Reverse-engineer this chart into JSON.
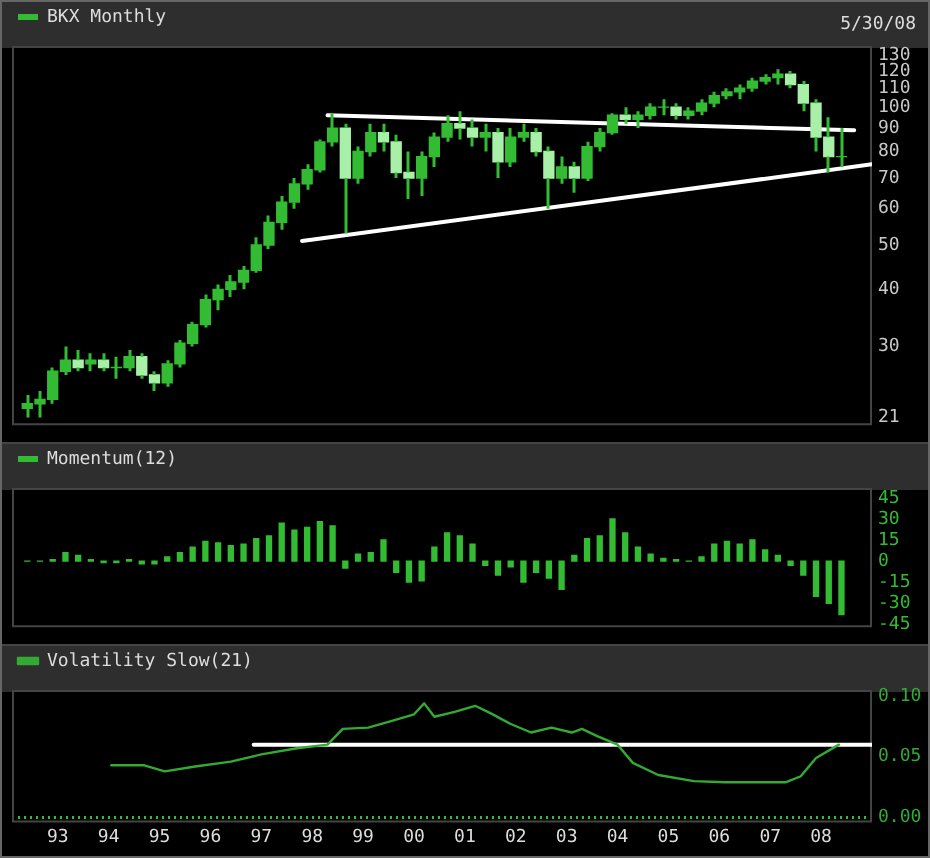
{
  "chart_data": [
    {
      "type": "candlestick",
      "legend": "top left",
      "log": true,
      "tick_labels": "y",
      "annotations": [
        "5/30/08"
      ],
      "xlim": [
        1992.1,
        2009.0
      ],
      "ylim": [
        20.2,
        136
      ],
      "yticks": [
        21,
        30,
        40,
        50,
        60,
        70,
        80,
        90,
        100,
        110,
        120,
        130
      ],
      "series": [
        {
          "name": "BKX Monthly",
          "color": "#33bb33",
          "colors": [
            "#33bb33",
            "#33bb33",
            "#33bb33",
            "#33bb33",
            "#a8f0a8",
            "#33bb33",
            "#a8f0a8",
            "#33bb33",
            "#33bb33",
            "#a8f0a8",
            "#a8f0a8",
            "#33bb33",
            "#33bb33",
            "#33bb33",
            "#33bb33",
            "#33bb33",
            "#33bb33",
            "#33bb33",
            "#33bb33",
            "#33bb33",
            "#33bb33",
            "#33bb33",
            "#33bb33",
            "#33bb33",
            "#33bb33",
            "#a8f0a8",
            "#33bb33",
            "#33bb33",
            "#a8f0a8",
            "#a8f0a8",
            "#a8f0a8",
            "#33bb33",
            "#33bb33",
            "#33bb33",
            "#a8f0a8",
            "#a8f0a8",
            "#33bb33",
            "#a8f0a8",
            "#33bb33",
            "#33bb33",
            "#a8f0a8",
            "#a8f0a8",
            "#33bb33",
            "#a8f0a8",
            "#33bb33",
            "#33bb33",
            "#33bb33",
            "#a8f0a8",
            "#33bb33",
            "#33bb33",
            "#33bb33",
            "#a8f0a8",
            "#33bb33",
            "#33bb33",
            "#33bb33",
            "#33bb33",
            "#33bb33",
            "#33bb33",
            "#33bb33",
            "#33bb33",
            "#a8f0a8",
            "#a8f0a8",
            "#a8f0a8",
            "#a8f0a8",
            "#33bb33"
          ],
          "x": [
            1992.4,
            1992.65,
            1992.9,
            1993.15,
            1993.4,
            1993.65,
            1993.9,
            1994.15,
            1994.4,
            1994.65,
            1994.9,
            1995.15,
            1995.4,
            1995.65,
            1995.9,
            1996.15,
            1996.4,
            1996.65,
            1996.9,
            1997.15,
            1997.4,
            1997.65,
            1997.9,
            1998.15,
            1998.4,
            1998.65,
            1998.9,
            1999.15,
            1999.4,
            1999.65,
            1999.9,
            2000.15,
            2000.4,
            2000.65,
            2000.9,
            2001.15,
            2001.4,
            2001.65,
            2001.9,
            2002.15,
            2002.4,
            2002.65,
            2002.9,
            2003.15,
            2003.4,
            2003.65,
            2003.9,
            2004.15,
            2004.4,
            2004.65,
            2004.9,
            2005.15,
            2005.4,
            2005.65,
            2005.9,
            2006.15,
            2006.4,
            2006.65,
            2006.9,
            2007.15,
            2007.4,
            2007.65,
            2007.9,
            2008.15,
            2008.4
          ],
          "ohlc": [
            [
              22,
              23.5,
              21,
              22.5
            ],
            [
              22.5,
              24,
              21,
              23
            ],
            [
              23,
              27,
              22.5,
              26.5
            ],
            [
              26.5,
              30,
              26,
              28
            ],
            [
              28,
              29.5,
              26.5,
              27
            ],
            [
              27.5,
              29,
              26.5,
              28
            ],
            [
              28,
              29,
              26.5,
              27
            ],
            [
              27,
              28.5,
              25.5,
              27
            ],
            [
              27,
              29.5,
              26.5,
              28.5
            ],
            [
              28.5,
              29,
              25.5,
              26
            ],
            [
              26,
              26.5,
              24,
              25
            ],
            [
              25,
              28,
              24.5,
              27.5
            ],
            [
              27.5,
              31,
              27,
              30.5
            ],
            [
              30.5,
              34,
              30,
              33.5
            ],
            [
              33.5,
              39,
              33,
              38
            ],
            [
              38,
              41,
              36,
              40
            ],
            [
              40,
              43,
              38.5,
              41.5
            ],
            [
              41.5,
              45,
              40,
              44
            ],
            [
              44,
              52,
              43.5,
              50
            ],
            [
              50,
              58,
              49,
              56
            ],
            [
              56,
              64,
              54,
              62
            ],
            [
              62,
              70,
              60,
              68
            ],
            [
              68,
              75,
              66,
              73
            ],
            [
              73,
              85,
              72,
              84
            ],
            [
              84,
              97,
              82,
              90
            ],
            [
              90,
              92,
              53,
              70
            ],
            [
              70,
              82,
              68,
              80
            ],
            [
              80,
              92,
              78,
              88
            ],
            [
              88,
              92,
              80,
              84
            ],
            [
              84,
              87,
              70,
              72
            ],
            [
              72,
              80,
              63,
              70
            ],
            [
              70,
              80,
              64,
              78
            ],
            [
              78,
              88,
              74,
              86
            ],
            [
              86,
              96,
              84,
              92
            ],
            [
              92,
              98,
              85,
              90
            ],
            [
              90,
              94,
              82,
              86
            ],
            [
              86,
              92,
              80,
              88
            ],
            [
              88,
              90,
              70,
              76
            ],
            [
              76,
              90,
              74,
              86
            ],
            [
              86,
              92,
              84,
              88
            ],
            [
              88,
              90,
              78,
              80
            ],
            [
              80,
              82,
              60,
              70
            ],
            [
              70,
              78,
              68,
              74
            ],
            [
              74,
              76,
              65,
              70
            ],
            [
              70,
              84,
              69,
              82
            ],
            [
              82,
              90,
              80,
              88
            ],
            [
              88,
              97,
              87,
              96
            ],
            [
              96,
              100,
              92,
              94
            ],
            [
              94,
              98,
              90,
              96
            ],
            [
              96,
              102,
              94,
              100
            ],
            [
              100,
              104,
              96,
              100
            ],
            [
              100,
              102,
              94,
              96
            ],
            [
              96,
              100,
              94,
              98
            ],
            [
              98,
              104,
              96,
              102
            ],
            [
              102,
              108,
              100,
              106
            ],
            [
              106,
              110,
              104,
              108
            ],
            [
              108,
              112,
              104,
              110
            ],
            [
              110,
              116,
              108,
              114
            ],
            [
              114,
              118,
              112,
              116
            ],
            [
              116,
              121,
              112,
              118
            ],
            [
              118,
              120,
              110,
              112
            ],
            [
              112,
              114,
              98,
              102
            ],
            [
              102,
              104,
              80,
              86
            ],
            [
              86,
              95,
              72,
              78
            ],
            [
              78,
              90,
              74,
              78
            ]
          ]
        },
        {
          "type": "line",
          "color": "#ffffff",
          "x": [
            1998.3,
            2008.65
          ],
          "values": [
            96,
            89
          ]
        },
        {
          "type": "line",
          "color": "#ffffff",
          "x": [
            1997.8,
            2009.0
          ],
          "values": [
            51,
            75
          ]
        }
      ]
    },
    {
      "type": "bar",
      "legend": "top left",
      "tick_labels": "y",
      "xlim": [
        1992.1,
        2009.0
      ],
      "ylim": [
        -47,
        52
      ],
      "yticks": [
        45,
        30,
        15,
        0,
        -15,
        -30,
        -45
      ],
      "series": [
        {
          "name": "Momentum(12)",
          "color": "#33bb33",
          "x": [
            1992.4,
            1992.65,
            1992.9,
            1993.15,
            1993.4,
            1993.65,
            1993.9,
            1994.15,
            1994.4,
            1994.65,
            1994.9,
            1995.15,
            1995.4,
            1995.65,
            1995.9,
            1996.15,
            1996.4,
            1996.65,
            1996.9,
            1997.15,
            1997.4,
            1997.65,
            1997.9,
            1998.15,
            1998.4,
            1998.65,
            1998.9,
            1999.15,
            1999.4,
            1999.65,
            1999.9,
            2000.15,
            2000.4,
            2000.65,
            2000.9,
            2001.15,
            2001.4,
            2001.65,
            2001.9,
            2002.15,
            2002.4,
            2002.65,
            2002.9,
            2003.15,
            2003.4,
            2003.65,
            2003.9,
            2004.15,
            2004.4,
            2004.65,
            2004.9,
            2005.15,
            2005.4,
            2005.65,
            2005.9,
            2006.15,
            2006.4,
            2006.65,
            2006.9,
            2007.15,
            2007.4,
            2007.65,
            2007.9,
            2008.15,
            2008.4
          ],
          "values": [
            0,
            0,
            1,
            6,
            4,
            1,
            -1,
            -1,
            1,
            -2,
            -2,
            3,
            6,
            10,
            14,
            13,
            11,
            12,
            16,
            18,
            27,
            22,
            24,
            28,
            25,
            -5,
            5,
            6,
            15,
            -8,
            -15,
            -14,
            10,
            20,
            18,
            12,
            -3,
            -10,
            -4,
            -15,
            -8,
            -12,
            -20,
            4,
            16,
            18,
            30,
            20,
            10,
            5,
            2,
            1,
            0,
            3,
            12,
            14,
            12,
            15,
            8,
            4,
            -3,
            -10,
            -25,
            -30,
            -38
          ]
        }
      ]
    },
    {
      "type": "line",
      "legend": "top left",
      "marker": "none",
      "xlim": [
        1992.1,
        2009.0
      ],
      "ylim": [
        -0.004,
        0.105
      ],
      "xticks": [
        {
          "value": 1993,
          "label": "93"
        },
        {
          "value": 1994,
          "label": "94"
        },
        {
          "value": 1995,
          "label": "95"
        },
        {
          "value": 1996,
          "label": "96"
        },
        {
          "value": 1997,
          "label": "97"
        },
        {
          "value": 1998,
          "label": "98"
        },
        {
          "value": 1999,
          "label": "99"
        },
        {
          "value": 2000,
          "label": "00"
        },
        {
          "value": 2001,
          "label": "01"
        },
        {
          "value": 2002,
          "label": "02"
        },
        {
          "value": 2003,
          "label": "03"
        },
        {
          "value": 2004,
          "label": "04"
        },
        {
          "value": 2005,
          "label": "05"
        },
        {
          "value": 2006,
          "label": "06"
        },
        {
          "value": 2007,
          "label": "07"
        },
        {
          "value": 2008,
          "label": "08"
        }
      ],
      "yticks": [
        {
          "value": 0.1,
          "label": "0.10"
        },
        {
          "value": 0.05,
          "label": "0.05"
        },
        {
          "value": 0,
          "label": "0.00"
        }
      ],
      "ref_lines": [
        {
          "axis": "y",
          "value": 0,
          "color": "#33bb33",
          "line_style": "dotted"
        }
      ],
      "series": [
        {
          "name": "Volatility Slow(21)",
          "color": "#33aa33",
          "x": [
            1994.05,
            1994.7,
            1995.1,
            1995.7,
            1996.4,
            1997.0,
            1997.7,
            1998.3,
            1998.6,
            1999.1,
            1999.6,
            2000.0,
            2000.2,
            2000.4,
            2000.8,
            2001.2,
            2001.5,
            2001.9,
            2002.3,
            2002.7,
            2003.1,
            2003.3,
            2003.6,
            2004.0,
            2004.3,
            2004.8,
            2005.5,
            2006.1,
            2006.8,
            2007.3,
            2007.6,
            2007.9,
            2008.35
          ],
          "values": [
            0.043,
            0.043,
            0.038,
            0.042,
            0.046,
            0.052,
            0.057,
            0.06,
            0.073,
            0.074,
            0.08,
            0.085,
            0.094,
            0.083,
            0.087,
            0.092,
            0.086,
            0.077,
            0.07,
            0.074,
            0.07,
            0.073,
            0.067,
            0.06,
            0.045,
            0.035,
            0.03,
            0.029,
            0.029,
            0.029,
            0.034,
            0.049,
            0.06
          ]
        },
        {
          "type": "line",
          "color": "#ffffff",
          "x": [
            1996.85,
            2009.0
          ],
          "values": [
            0.06,
            0.06
          ]
        }
      ]
    }
  ]
}
